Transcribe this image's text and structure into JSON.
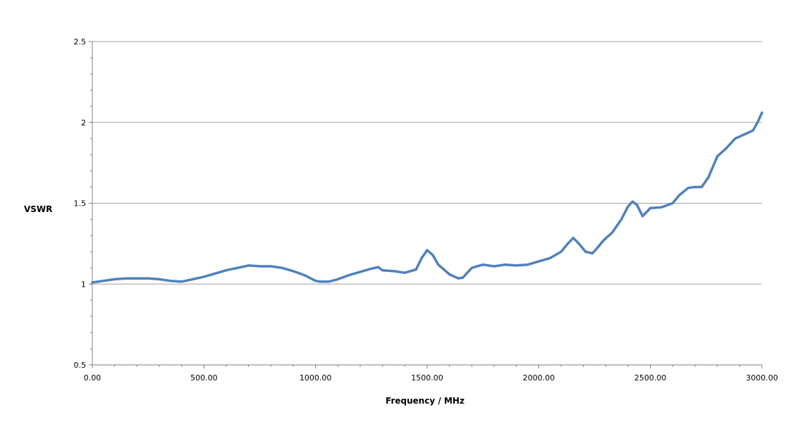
{
  "chart_data": {
    "type": "line",
    "title": "",
    "xlabel": "Frequency / MHz",
    "ylabel": "VSWR",
    "xlim": [
      0,
      3000
    ],
    "ylim": [
      0.5,
      2.5
    ],
    "x_ticks": [
      "0.00",
      "500.00",
      "1000.00",
      "1500.00",
      "2000.00",
      "2500.00",
      "3000.00"
    ],
    "y_ticks": [
      "0.5",
      "1",
      "1.5",
      "2",
      "2.5"
    ],
    "grid": "horizontal major",
    "legend": "none",
    "series_color": "#4f81bd",
    "series": [
      {
        "x": [
          0,
          50,
          100,
          150,
          200,
          250,
          300,
          350,
          400,
          450,
          500,
          550,
          600,
          650,
          700,
          750,
          800,
          850,
          900,
          950,
          1000,
          1020,
          1060,
          1100,
          1150,
          1200,
          1250,
          1280,
          1300,
          1350,
          1400,
          1450,
          1475,
          1500,
          1525,
          1550,
          1600,
          1640,
          1660,
          1700,
          1750,
          1800,
          1850,
          1900,
          1950,
          2000,
          2050,
          2100,
          2130,
          2155,
          2180,
          2210,
          2240,
          2260,
          2290,
          2330,
          2370,
          2400,
          2420,
          2440,
          2465,
          2500,
          2550,
          2600,
          2630,
          2670,
          2700,
          2730,
          2760,
          2800,
          2840,
          2880,
          2920,
          2960,
          2980,
          3000
        ],
        "values": [
          1.01,
          1.02,
          1.03,
          1.035,
          1.035,
          1.035,
          1.03,
          1.02,
          1.015,
          1.03,
          1.045,
          1.065,
          1.085,
          1.1,
          1.115,
          1.11,
          1.11,
          1.1,
          1.08,
          1.055,
          1.02,
          1.015,
          1.015,
          1.03,
          1.055,
          1.075,
          1.095,
          1.105,
          1.085,
          1.08,
          1.07,
          1.09,
          1.16,
          1.21,
          1.18,
          1.12,
          1.06,
          1.035,
          1.04,
          1.1,
          1.12,
          1.11,
          1.12,
          1.115,
          1.12,
          1.14,
          1.16,
          1.2,
          1.25,
          1.285,
          1.25,
          1.2,
          1.19,
          1.22,
          1.27,
          1.32,
          1.4,
          1.48,
          1.51,
          1.49,
          1.42,
          1.47,
          1.475,
          1.5,
          1.55,
          1.595,
          1.6,
          1.6,
          1.66,
          1.79,
          1.84,
          1.9,
          1.925,
          1.95,
          2.0,
          2.06
        ]
      }
    ]
  }
}
